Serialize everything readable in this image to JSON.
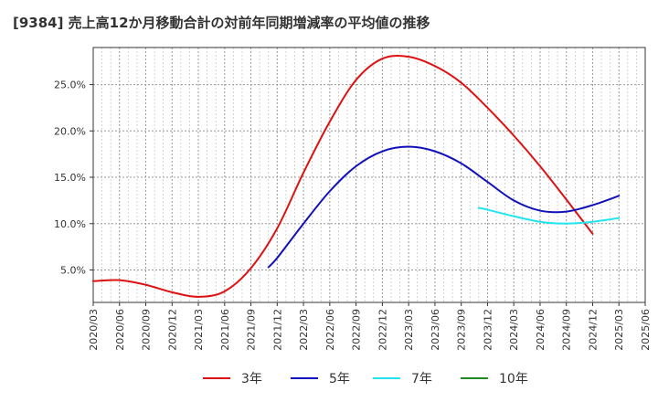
{
  "chart_data": {
    "type": "line",
    "title": "[9384]  売上高12か月移動合計の対前年同期増減率の平均値の推移",
    "xlabel": "",
    "ylabel": "",
    "x_ticks": [
      "2020/03",
      "2020/06",
      "2020/09",
      "2020/12",
      "2021/03",
      "2021/06",
      "2021/09",
      "2021/12",
      "2022/03",
      "2022/06",
      "2022/09",
      "2022/12",
      "2023/03",
      "2023/06",
      "2023/09",
      "2023/12",
      "2024/03",
      "2024/06",
      "2024/09",
      "2024/12",
      "2025/03",
      "2025/06"
    ],
    "y_ticks": [
      "5.0%",
      "10.0%",
      "15.0%",
      "20.0%",
      "25.0%"
    ],
    "y_tick_values": [
      5,
      10,
      15,
      20,
      25
    ],
    "ylim": [
      1.5,
      29
    ],
    "grid": true,
    "legend_position": "bottom",
    "series": [
      {
        "name": "3年",
        "color": "#dd1111",
        "x": [
          "2020/03",
          "2020/06",
          "2020/09",
          "2020/12",
          "2021/03",
          "2021/06",
          "2021/09",
          "2021/12",
          "2022/03",
          "2022/06",
          "2022/09",
          "2022/12",
          "2023/03",
          "2023/06",
          "2023/09",
          "2023/12",
          "2024/03",
          "2024/06",
          "2024/09",
          "2024/12",
          "2025/03"
        ],
        "values": [
          3.8,
          3.9,
          3.4,
          2.6,
          2.1,
          2.7,
          5.2,
          9.5,
          15.5,
          21.0,
          25.5,
          27.8,
          28.0,
          27.0,
          25.2,
          22.5,
          19.5,
          16.2,
          12.6,
          8.9,
          null
        ]
      },
      {
        "name": "5年",
        "color": "#1111bb",
        "x": [
          "2021/11",
          "2021/12",
          "2022/03",
          "2022/06",
          "2022/09",
          "2022/12",
          "2023/03",
          "2023/06",
          "2023/09",
          "2023/12",
          "2024/03",
          "2024/06",
          "2024/09",
          "2024/12",
          "2025/03"
        ],
        "values": [
          5.3,
          6.3,
          10.0,
          13.5,
          16.2,
          17.8,
          18.3,
          17.8,
          16.5,
          14.5,
          12.5,
          11.4,
          11.3,
          12.0,
          13.0
        ]
      },
      {
        "name": "7年",
        "color": "#22e5f0",
        "x": [
          "2023/11",
          "2023/12",
          "2024/03",
          "2024/06",
          "2024/09",
          "2024/12",
          "2025/03"
        ],
        "values": [
          11.7,
          11.5,
          10.8,
          10.2,
          10.0,
          10.2,
          10.6
        ]
      },
      {
        "name": "10年",
        "color": "#228822",
        "x": [],
        "values": []
      }
    ]
  }
}
